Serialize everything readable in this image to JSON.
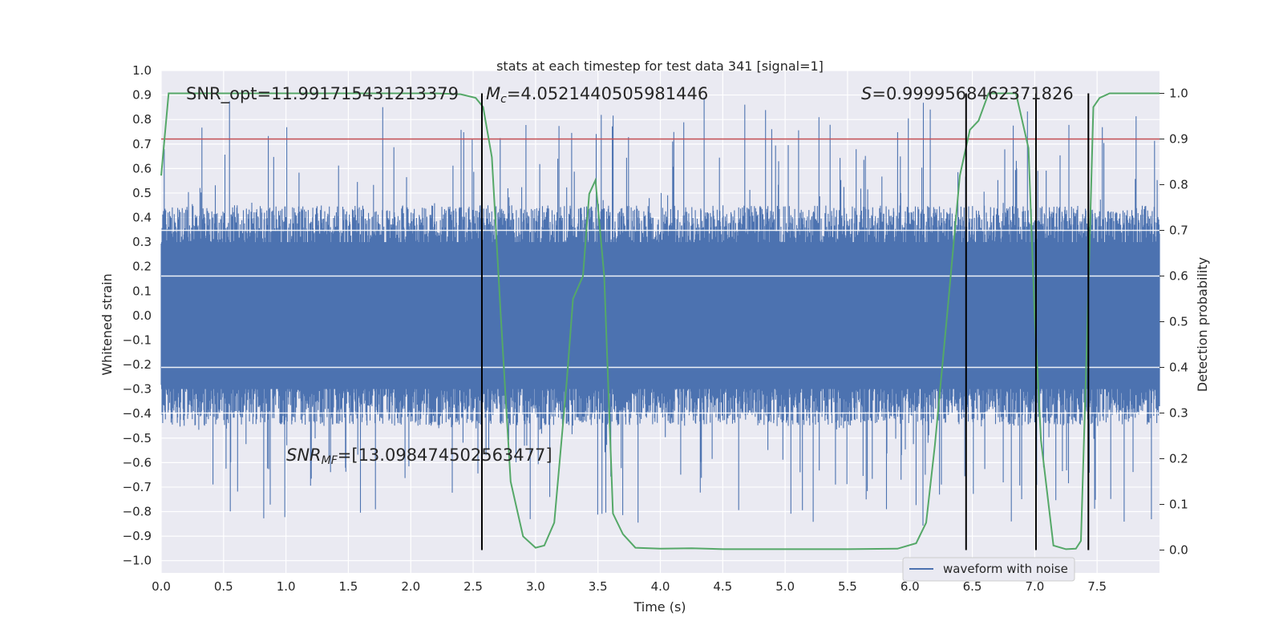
{
  "chart_data": {
    "type": "line",
    "title": "stats at each timestep for test data 341 [signal=1]",
    "xlabel": "Time (s)",
    "ylabel": "Whitened strain",
    "y2label": "Detection probability",
    "xlim": [
      0,
      8
    ],
    "ylim": [
      -1.05,
      1.0
    ],
    "y2lim": [
      -0.05,
      1.05
    ],
    "xticks": [
      "0.0",
      "0.5",
      "1.0",
      "1.5",
      "2.0",
      "2.5",
      "3.0",
      "3.5",
      "4.0",
      "4.5",
      "5.0",
      "5.5",
      "6.0",
      "6.5",
      "7.0",
      "7.5"
    ],
    "yticks": [
      "1.0",
      "0.9",
      "0.8",
      "0.7",
      "0.6",
      "0.5",
      "0.4",
      "0.3",
      "0.2",
      "0.1",
      "0.0",
      "−0.1",
      "−0.2",
      "−0.3",
      "−0.4",
      "−0.5",
      "−0.6",
      "−0.7",
      "−0.8",
      "−0.9",
      "−1.0"
    ],
    "y2ticks": [
      "1.0",
      "0.9",
      "0.8",
      "0.7",
      "0.6",
      "0.5",
      "0.4",
      "0.3",
      "0.2",
      "0.1",
      "0.0"
    ],
    "annotations": {
      "snr_opt": "SNR_opt=11.991715431213379",
      "mc": "=4.0521440505981446",
      "mc_symbol": "M",
      "mc_sub": "c",
      "s_val": "=0.9999568462371826",
      "s_symbol": "S",
      "snr_mf": "=[13.098474502563477]",
      "snr_mf_symbol": "SNR",
      "snr_mf_sub": "MF"
    },
    "legend": {
      "label": "waveform with noise",
      "position": "lower-right"
    },
    "threshold_prob": 0.9,
    "vertical_lines_time": [
      2.57,
      6.45,
      7.01,
      7.43
    ],
    "series": [
      {
        "name": "waveform with noise",
        "color": "#4c72b0",
        "axis": "left",
        "envelope_hi": 0.45,
        "envelope_lo": -0.45,
        "max_abs": 0.91
      },
      {
        "name": "Detection probability",
        "color": "#55a868",
        "axis": "right",
        "x": [
          0.0,
          0.06,
          0.15,
          0.5,
          1.0,
          1.5,
          2.0,
          2.2,
          2.4,
          2.52,
          2.58,
          2.65,
          2.72,
          2.8,
          2.9,
          3.0,
          3.07,
          3.15,
          3.25,
          3.3,
          3.38,
          3.43,
          3.48,
          3.55,
          3.62,
          3.7,
          3.8,
          4.0,
          4.25,
          4.5,
          5.0,
          5.5,
          5.9,
          6.05,
          6.13,
          6.2,
          6.3,
          6.4,
          6.48,
          6.55,
          6.63,
          6.75,
          6.85,
          6.95,
          7.0,
          7.05,
          7.15,
          7.25,
          7.33,
          7.37,
          7.42,
          7.47,
          7.52,
          7.6,
          7.7,
          8.0
        ],
        "values": [
          0.82,
          1.0,
          1.0,
          1.0,
          1.0,
          1.0,
          1.0,
          1.0,
          0.998,
          0.99,
          0.97,
          0.86,
          0.52,
          0.15,
          0.03,
          0.005,
          0.01,
          0.06,
          0.37,
          0.55,
          0.6,
          0.78,
          0.81,
          0.6,
          0.08,
          0.035,
          0.005,
          0.003,
          0.004,
          0.002,
          0.002,
          0.002,
          0.003,
          0.015,
          0.06,
          0.23,
          0.52,
          0.82,
          0.92,
          0.94,
          1.0,
          1.0,
          1.0,
          0.88,
          0.51,
          0.24,
          0.01,
          0.002,
          0.003,
          0.02,
          0.47,
          0.97,
          0.99,
          1.0,
          1.0,
          1.0
        ]
      }
    ]
  }
}
